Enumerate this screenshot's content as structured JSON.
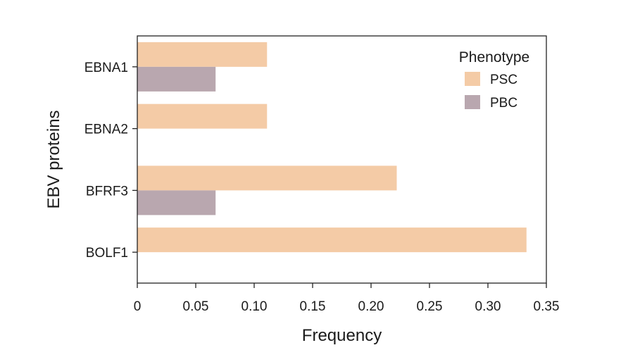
{
  "chart_data": {
    "type": "bar",
    "orientation": "horizontal",
    "categories": [
      "EBNA1",
      "EBNA2",
      "BFRF3",
      "BOLF1"
    ],
    "series": [
      {
        "name": "PSC",
        "color": "#f4cba6",
        "values": [
          0.111,
          0.111,
          0.222,
          0.333
        ]
      },
      {
        "name": "PBC",
        "color": "#b9a7af",
        "values": [
          0.067,
          0,
          0.067,
          0
        ]
      }
    ],
    "xlabel": "Frequency",
    "ylabel": "EBV proteins",
    "xlim": [
      0,
      0.35
    ],
    "xticks": [
      0,
      0.05,
      0.1,
      0.15,
      0.2,
      0.25,
      0.3,
      0.35
    ],
    "xtick_labels": [
      "0",
      "0.05",
      "0.10",
      "0.15",
      "0.20",
      "0.25",
      "0.30",
      "0.35"
    ],
    "legend": {
      "title": "Phenotype",
      "placement": "top-right"
    },
    "grid": false
  }
}
